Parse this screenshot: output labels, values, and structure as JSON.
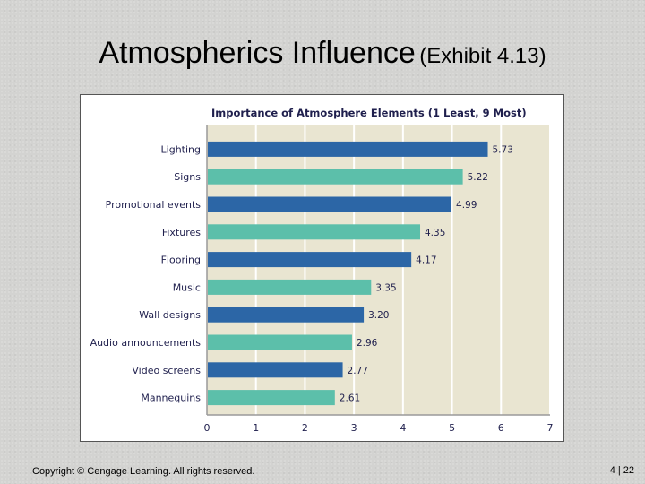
{
  "slide": {
    "title_main": "Atmospherics Influence",
    "title_sub": "(Exhibit 4.13)",
    "copyright": "Copyright © Cengage Learning. All rights reserved.",
    "page_current": "4",
    "page_sep": "|",
    "page_total": "22"
  },
  "chart_data": {
    "type": "bar",
    "orientation": "horizontal",
    "title": "Importance of Atmosphere Elements (1 Least, 9 Most)",
    "categories": [
      "Lighting",
      "Signs",
      "Promotional events",
      "Fixtures",
      "Flooring",
      "Music",
      "Wall designs",
      "Audio announcements",
      "Video screens",
      "Mannequins"
    ],
    "values": [
      5.73,
      5.22,
      4.99,
      4.35,
      4.17,
      3.35,
      3.2,
      2.96,
      2.77,
      2.61
    ],
    "value_labels": [
      "5.73",
      "5.22",
      "4.99",
      "4.35",
      "4.17",
      "3.35",
      "3.20",
      "2.96",
      "2.77",
      "2.61"
    ],
    "xlim": [
      0,
      7
    ],
    "x_ticks": [
      "0",
      "1",
      "2",
      "3",
      "4",
      "5",
      "6",
      "7"
    ],
    "grid": true,
    "colors": {
      "plot_background": "#e9e5d1",
      "bar_primary": "#2c66a6",
      "bar_secondary": "#5cbfaa",
      "label_text": "#1f1f4d",
      "gridline": "#ffffff",
      "axis": "#9a9a9a"
    }
  }
}
